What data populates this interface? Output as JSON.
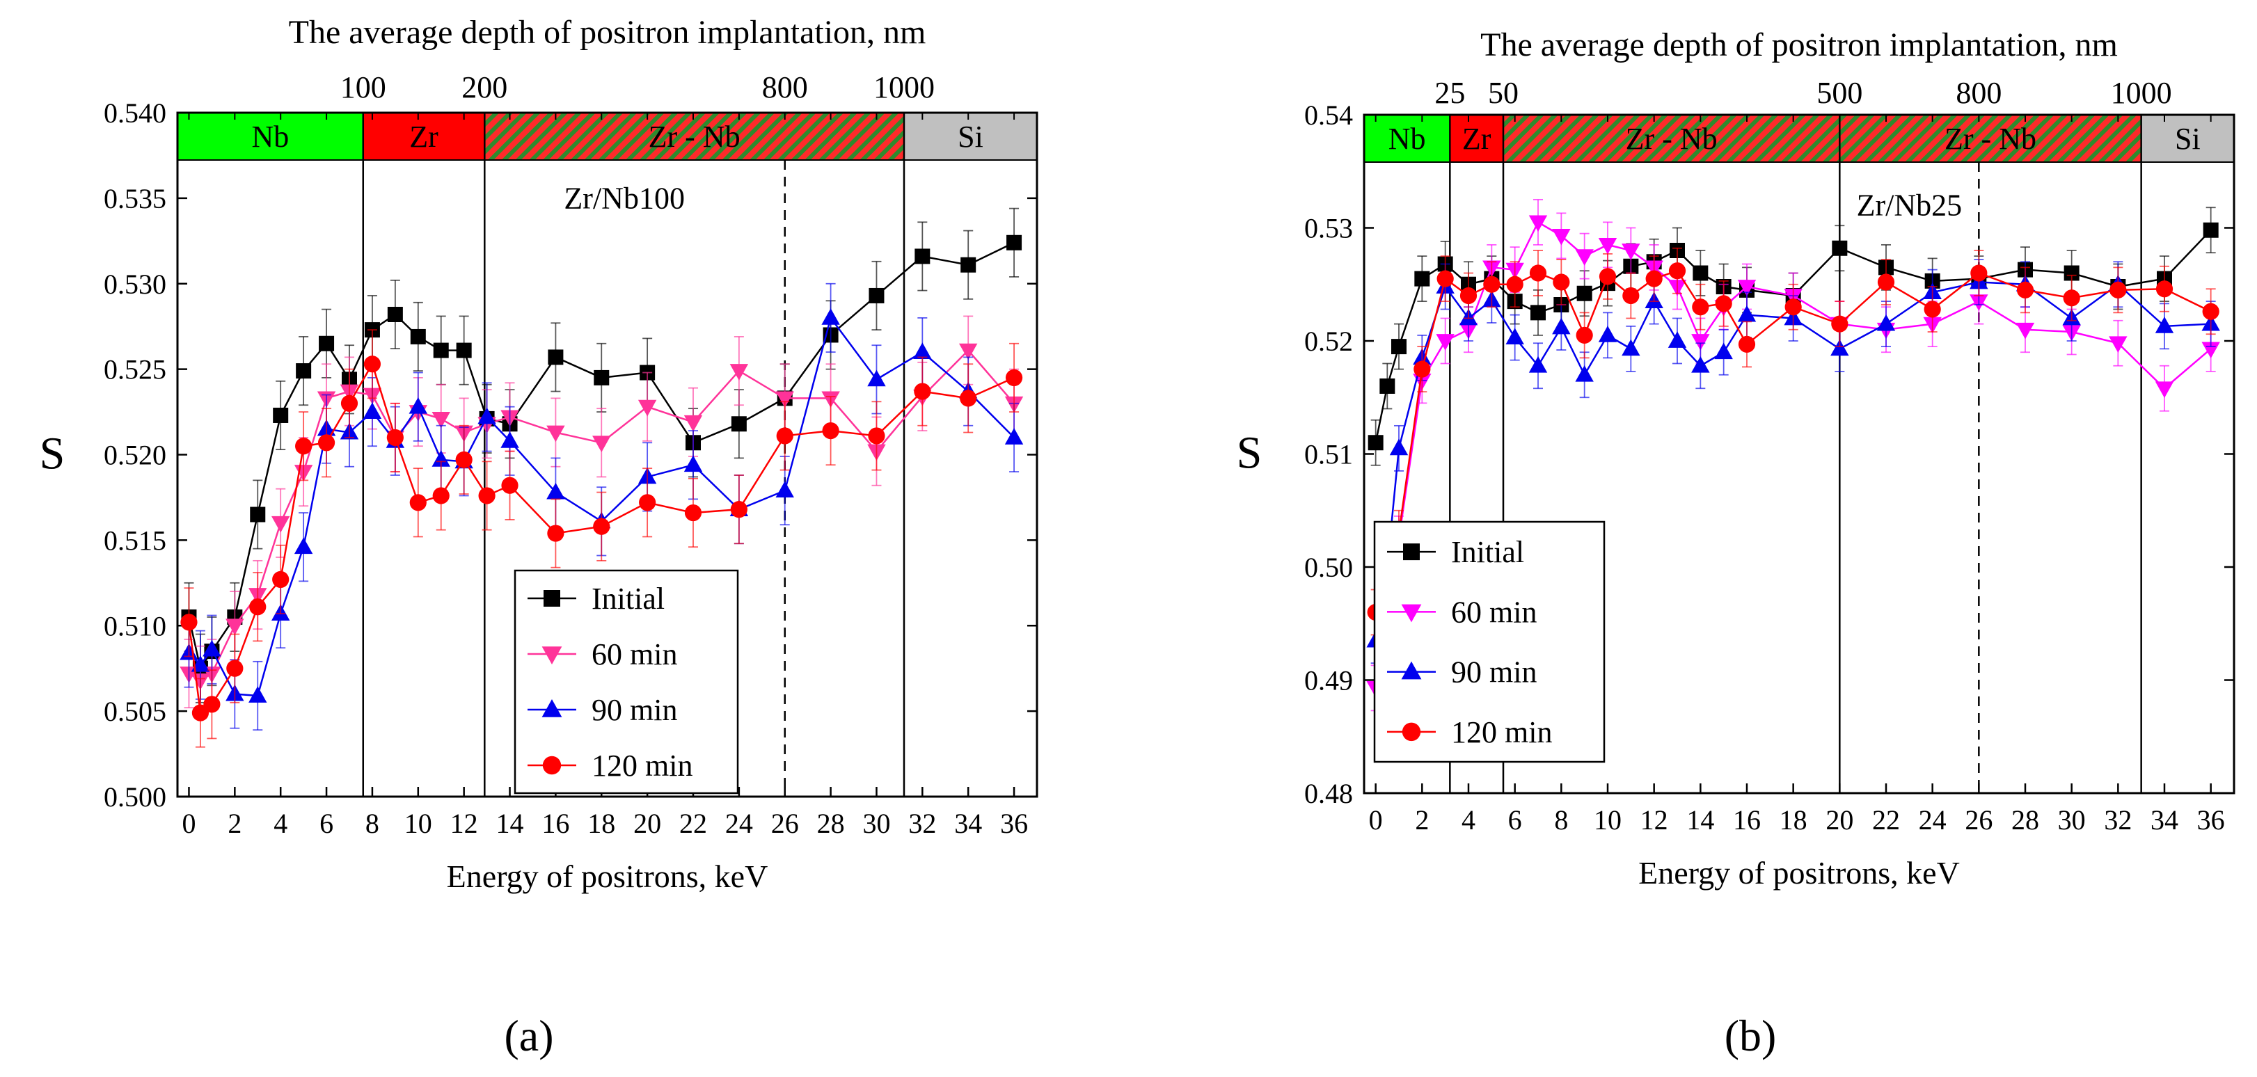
{
  "chart_data": [
    {
      "type": "scatter",
      "panel": "(a)",
      "sample": "Zr/Nb100",
      "top_title": "The average depth of positron implantation, nm",
      "xlabel": "Energy of positrons, keV",
      "ylabel": "S",
      "xlim": [
        -0.5,
        37
      ],
      "ylim": [
        0.5,
        0.54
      ],
      "xticks": [
        0,
        2,
        4,
        6,
        8,
        10,
        12,
        14,
        16,
        18,
        20,
        22,
        24,
        26,
        28,
        30,
        32,
        34,
        36
      ],
      "yticks": [
        0.5,
        0.505,
        0.51,
        0.515,
        0.52,
        0.525,
        0.53,
        0.535,
        0.54
      ],
      "ytick_labels": [
        "0.500",
        "0.505",
        "0.510",
        "0.515",
        "0.520",
        "0.525",
        "0.530",
        "0.535",
        "0.540"
      ],
      "top_ticks": [
        {
          "label": "100",
          "energy": 7.6
        },
        {
          "label": "200",
          "energy": 12.9
        },
        {
          "label": "800",
          "energy": 26.0
        },
        {
          "label": "1000",
          "energy": 31.2
        }
      ],
      "layers": [
        {
          "label": "Nb",
          "from": -0.5,
          "to": 7.6,
          "color": "#00ff00",
          "hatched": false
        },
        {
          "label": "Zr",
          "from": 7.6,
          "to": 12.9,
          "color": "#ff0000",
          "hatched": false
        },
        {
          "label": "Zr - Nb",
          "from": 12.9,
          "to": 31.2,
          "color": "#ff2a2a",
          "hatched": true
        },
        {
          "label": "Si",
          "from": 31.2,
          "to": 37,
          "color": "#c0c0c0",
          "hatched": false
        }
      ],
      "solid_lines": [
        7.6,
        12.9,
        31.2
      ],
      "dashed_lines": [
        26.0
      ],
      "series": [
        {
          "name": "Initial",
          "color": "#000000",
          "marker": "square",
          "x": [
            0,
            0.5,
            1,
            2,
            3,
            4,
            5,
            6,
            7,
            8,
            9,
            10,
            11,
            12,
            13,
            14,
            16,
            18,
            20,
            22,
            24,
            26,
            28,
            30,
            32,
            34,
            36
          ],
          "y": [
            0.5105,
            0.5075,
            0.5085,
            0.5105,
            0.5165,
            0.5223,
            0.5249,
            0.5265,
            0.5244,
            0.5273,
            0.5282,
            0.5269,
            0.5261,
            0.5261,
            0.5221,
            0.5218,
            0.5257,
            0.5245,
            0.5248,
            0.5207,
            0.5218,
            0.5233,
            0.527,
            0.5293,
            0.5316,
            0.5311,
            0.5324
          ],
          "err": 0.002
        },
        {
          "name": "60 min",
          "color": "#ff3399",
          "marker": "triangle-down",
          "x": [
            0,
            0.5,
            1,
            2,
            3,
            4,
            5,
            6,
            7,
            8,
            9,
            10,
            11,
            12,
            13,
            14,
            16,
            18,
            20,
            22,
            24,
            26,
            28,
            30,
            32,
            34,
            36
          ],
          "y": [
            0.5072,
            0.5068,
            0.5072,
            0.51,
            0.5118,
            0.516,
            0.519,
            0.5233,
            0.5237,
            0.5235,
            0.521,
            0.5225,
            0.5221,
            0.5213,
            0.5218,
            0.5222,
            0.5213,
            0.5207,
            0.5228,
            0.5219,
            0.5249,
            0.5233,
            0.5233,
            0.5202,
            0.5234,
            0.5261,
            0.523
          ],
          "err": 0.002
        },
        {
          "name": "90 min",
          "color": "#0000ee",
          "marker": "triangle-up",
          "x": [
            0,
            0.5,
            1,
            2,
            3,
            4,
            5,
            6,
            7,
            8,
            9,
            10,
            11,
            12,
            13,
            14,
            16,
            18,
            20,
            22,
            24,
            26,
            28,
            30,
            32,
            34,
            36
          ],
          "y": [
            0.5084,
            0.5077,
            0.5086,
            0.506,
            0.5059,
            0.5107,
            0.5146,
            0.5215,
            0.5213,
            0.5225,
            0.5208,
            0.5228,
            0.5197,
            0.5196,
            0.5222,
            0.5208,
            0.5178,
            0.5161,
            0.5187,
            0.5194,
            0.5168,
            0.5179,
            0.528,
            0.5244,
            0.526,
            0.5237,
            0.521
          ],
          "err": 0.002
        },
        {
          "name": "120 min",
          "color": "#ff0000",
          "marker": "circle",
          "x": [
            0,
            0.5,
            1,
            2,
            3,
            4,
            5,
            6,
            7,
            8,
            9,
            10,
            11,
            12,
            13,
            14,
            16,
            18,
            20,
            22,
            24,
            26,
            28,
            30,
            32,
            34,
            36
          ],
          "y": [
            0.5102,
            0.5049,
            0.5054,
            0.5075,
            0.5111,
            0.5127,
            0.5205,
            0.5207,
            0.523,
            0.5253,
            0.521,
            0.5172,
            0.5176,
            0.5197,
            0.5176,
            0.5182,
            0.5154,
            0.5158,
            0.5172,
            0.5166,
            0.5168,
            0.5211,
            0.5214,
            0.5211,
            0.5237,
            0.5233,
            0.5245
          ],
          "err": 0.002
        }
      ],
      "legend": [
        "Initial",
        "60 min",
        "90 min",
        "120 min"
      ],
      "legend_position": "bottom-center"
    },
    {
      "type": "scatter",
      "panel": "(b)",
      "sample": "Zr/Nb25",
      "top_title": "The average depth of positron implantation, nm",
      "xlabel": "Energy of positrons, keV",
      "ylabel": "S",
      "xlim": [
        -0.5,
        37
      ],
      "ylim": [
        0.48,
        0.54
      ],
      "xticks": [
        0,
        2,
        4,
        6,
        8,
        10,
        12,
        14,
        16,
        18,
        20,
        22,
        24,
        26,
        28,
        30,
        32,
        34,
        36
      ],
      "yticks": [
        0.48,
        0.49,
        0.5,
        0.51,
        0.52,
        0.53,
        0.54
      ],
      "ytick_labels": [
        "0.48",
        "0.49",
        "0.50",
        "0.51",
        "0.52",
        "0.53",
        "0.54"
      ],
      "top_ticks": [
        {
          "label": "25",
          "energy": 3.2
        },
        {
          "label": "50",
          "energy": 5.5
        },
        {
          "label": "500",
          "energy": 20.0
        },
        {
          "label": "800",
          "energy": 26.0
        },
        {
          "label": "1000",
          "energy": 33.0
        }
      ],
      "layers": [
        {
          "label": "Nb",
          "from": -0.5,
          "to": 3.2,
          "color": "#00ff00",
          "hatched": false
        },
        {
          "label": "Zr",
          "from": 3.2,
          "to": 5.5,
          "color": "#ff0000",
          "hatched": false
        },
        {
          "label": "Zr - Nb",
          "from": 5.5,
          "to": 20.0,
          "color": "#ff2a2a",
          "hatched": true
        },
        {
          "label": "Zr - Nb",
          "from": 20.0,
          "to": 33.0,
          "color": "#ff2a2a",
          "hatched": true
        },
        {
          "label": "Si",
          "from": 33.0,
          "to": 37,
          "color": "#c0c0c0",
          "hatched": false
        }
      ],
      "solid_lines": [
        3.2,
        5.5,
        20.0,
        33.0
      ],
      "dashed_lines": [
        26.0
      ],
      "series": [
        {
          "name": "Initial",
          "color": "#000000",
          "marker": "square",
          "x": [
            0,
            0.5,
            1,
            2,
            3,
            4,
            5,
            6,
            7,
            8,
            9,
            10,
            11,
            12,
            13,
            14,
            15,
            16,
            18,
            20,
            22,
            24,
            26,
            28,
            30,
            32,
            34,
            36
          ],
          "y": [
            0.511,
            0.516,
            0.5195,
            0.5255,
            0.5268,
            0.525,
            0.5255,
            0.5235,
            0.5225,
            0.5232,
            0.5242,
            0.5251,
            0.5266,
            0.527,
            0.528,
            0.526,
            0.5248,
            0.5245,
            0.524,
            0.5282,
            0.5265,
            0.5253,
            0.5255,
            0.5263,
            0.526,
            0.5248,
            0.5255,
            0.5298
          ],
          "err": 0.002
        },
        {
          "name": "60 min",
          "color": "#ff00ff",
          "marker": "triangle-down",
          "x": [
            0,
            0.5,
            1,
            2,
            3,
            4,
            5,
            6,
            7,
            8,
            9,
            10,
            11,
            12,
            13,
            14,
            15,
            16,
            18,
            20,
            22,
            24,
            26,
            28,
            30,
            32,
            34,
            36
          ],
          "y": [
            0.4893,
            0.4955,
            0.5025,
            0.5165,
            0.52,
            0.521,
            0.5265,
            0.5263,
            0.5305,
            0.5293,
            0.5275,
            0.5285,
            0.528,
            0.5265,
            0.5248,
            0.52,
            0.523,
            0.5248,
            0.524,
            0.5215,
            0.521,
            0.5215,
            0.5235,
            0.521,
            0.5208,
            0.5198,
            0.5158,
            0.5193
          ],
          "err": 0.002
        },
        {
          "name": "90 min",
          "color": "#0000ee",
          "marker": "triangle-up",
          "x": [
            0,
            0.5,
            1,
            2,
            3,
            4,
            5,
            6,
            7,
            8,
            9,
            10,
            11,
            12,
            13,
            14,
            15,
            16,
            18,
            20,
            22,
            24,
            26,
            28,
            30,
            32,
            34,
            36
          ],
          "y": [
            0.4935,
            0.5,
            0.5105,
            0.5185,
            0.5248,
            0.522,
            0.5236,
            0.5203,
            0.5178,
            0.5212,
            0.517,
            0.5205,
            0.5193,
            0.5235,
            0.52,
            0.5178,
            0.519,
            0.5223,
            0.522,
            0.5193,
            0.5215,
            0.5243,
            0.5252,
            0.525,
            0.522,
            0.525,
            0.5213,
            0.5215
          ],
          "err": 0.002
        },
        {
          "name": "120 min",
          "color": "#ff0000",
          "marker": "circle",
          "x": [
            0,
            0.5,
            1,
            2,
            3,
            4,
            5,
            6,
            7,
            8,
            9,
            10,
            11,
            12,
            13,
            14,
            15,
            16,
            18,
            20,
            22,
            24,
            26,
            28,
            30,
            32,
            34,
            36
          ],
          "y": [
            0.496,
            0.4955,
            0.503,
            0.5175,
            0.5255,
            0.524,
            0.525,
            0.525,
            0.526,
            0.5252,
            0.5205,
            0.5257,
            0.524,
            0.5255,
            0.5262,
            0.523,
            0.5233,
            0.5197,
            0.523,
            0.5215,
            0.5252,
            0.5228,
            0.526,
            0.5245,
            0.5238,
            0.5245,
            0.5246,
            0.5226
          ],
          "err": 0.002
        }
      ],
      "legend": [
        "Initial",
        "60 min",
        "90 min",
        "120 min"
      ],
      "legend_position": "bottom-left"
    }
  ]
}
